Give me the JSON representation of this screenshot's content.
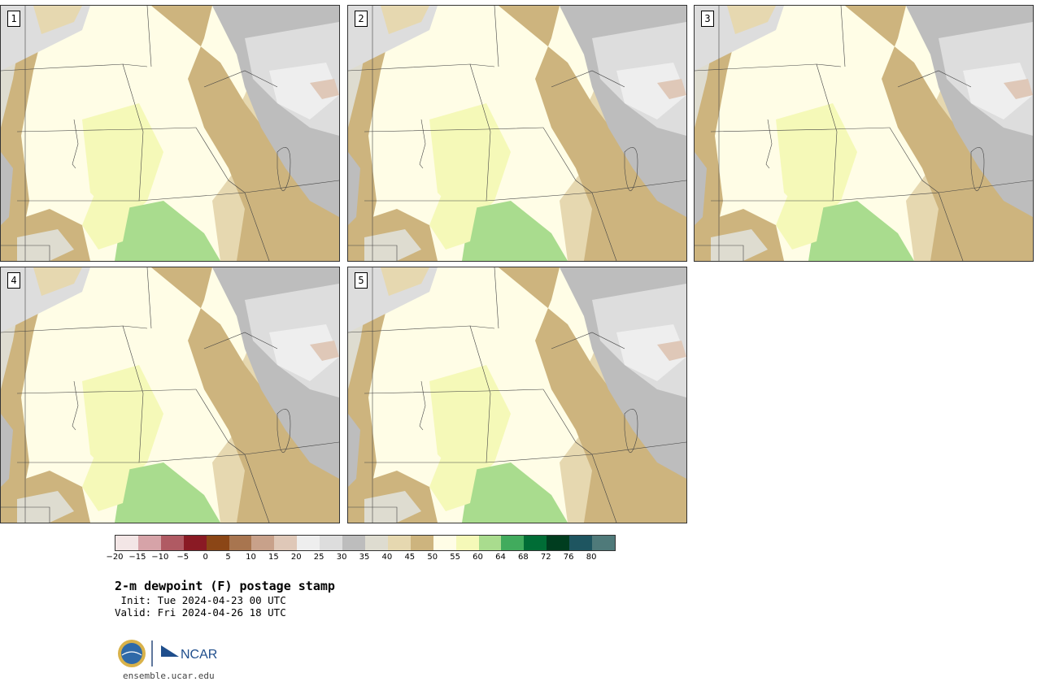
{
  "panels": [
    {
      "label": "1"
    },
    {
      "label": "2"
    },
    {
      "label": "3"
    },
    {
      "label": "4"
    },
    {
      "label": "5"
    }
  ],
  "colorbar": {
    "colors": [
      "#f3e6e6",
      "#d6a3a8",
      "#b05a63",
      "#8a1a24",
      "#8b4616",
      "#a8754f",
      "#c8a18a",
      "#dfc8b8",
      "#eeeeee",
      "#dddddd",
      "#bdbdbd",
      "#dedcd0",
      "#e6d8b0",
      "#cdb47e",
      "#fffde6",
      "#f5f9b8",
      "#a9dc8e",
      "#41ab5d",
      "#006d36",
      "#003d1f",
      "#1e5560",
      "#4f7a7a"
    ],
    "tick_labels": [
      "−20",
      "−15",
      "−10",
      "−5",
      "0",
      "5",
      "10",
      "15",
      "20",
      "25",
      "30",
      "35",
      "40",
      "45",
      "50",
      "55",
      "60",
      "64",
      "68",
      "72",
      "76",
      "80"
    ]
  },
  "title": "2-m dewpoint (F) postage stamp",
  "init": " Init: Tue 2024-04-23 00 UTC",
  "valid": "Valid: Fri 2024-04-26 18 UTC",
  "logo": {
    "nsf_text": "NSF",
    "ncar_text": "NCAR"
  },
  "website": "ensemble.ucar.edu"
}
